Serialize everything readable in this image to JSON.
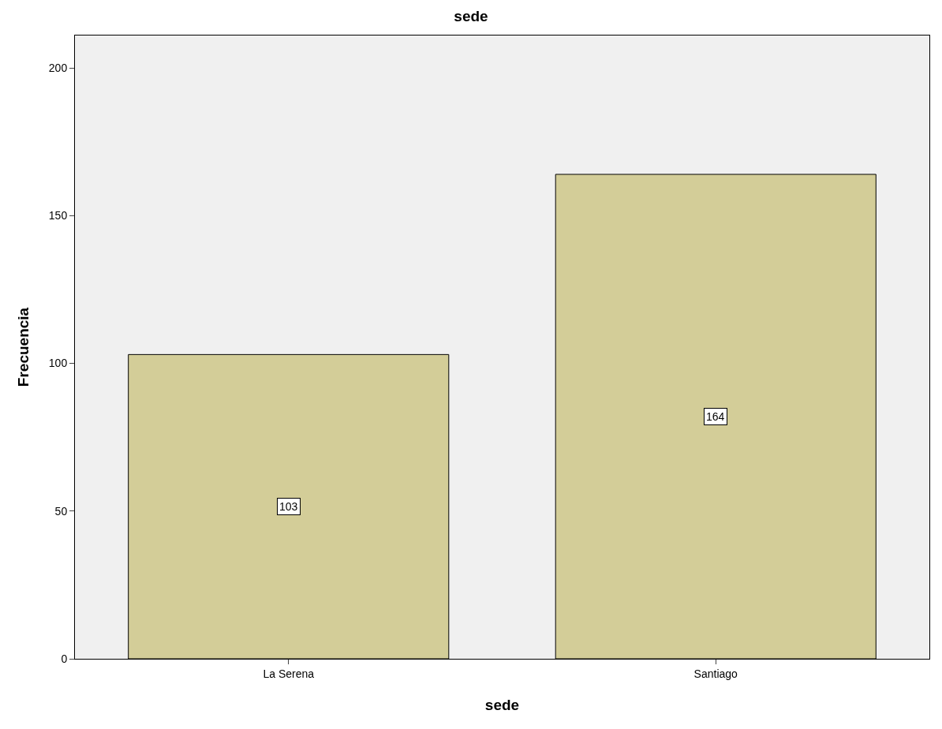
{
  "chart_data": {
    "type": "bar",
    "title": "sede",
    "xlabel": "sede",
    "ylabel": "Frecuencia",
    "categories": [
      "La Serena",
      "Santiago"
    ],
    "values": [
      103,
      164
    ],
    "color": "#d3cd98",
    "ylim": [
      0,
      211
    ],
    "yticks": [
      0,
      50,
      100,
      150,
      200
    ],
    "grid": false,
    "data_labels": true
  }
}
